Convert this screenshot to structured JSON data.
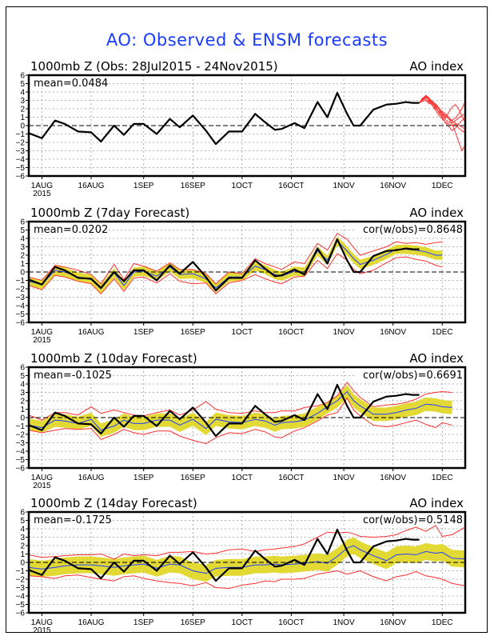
{
  "title": "AO: Observed & ENSM forecasts",
  "chart_data": [
    {
      "type": "line",
      "panel": "observed",
      "title": "1000mb Z (Obs: 28Jul2015 - 24Nov2015)",
      "right_title": "AO index",
      "annotation_left": "mean=0.0484",
      "annotation_right": "",
      "xlabel": "",
      "ylabel": "",
      "ylim": [
        -6,
        6
      ],
      "yticks": [
        6,
        5,
        4,
        3,
        2,
        1,
        0,
        -1,
        -2,
        -3,
        -4,
        -5,
        -6
      ],
      "xticks": [
        {
          "day": 4,
          "label": "1AUG",
          "sub": "2015"
        },
        {
          "day": 19,
          "label": "16AUG"
        },
        {
          "day": 35,
          "label": "1SEP"
        },
        {
          "day": 50,
          "label": "16SEP"
        },
        {
          "day": 65,
          "label": "1OCT"
        },
        {
          "day": 80,
          "label": "16OCT"
        },
        {
          "day": 96,
          "label": "1NOV"
        },
        {
          "day": 111,
          "label": "16NOV"
        },
        {
          "day": 126,
          "label": "1DEC"
        }
      ],
      "xlim_days": [
        0,
        133
      ],
      "grid": true,
      "zero_line": "dashed",
      "observed": {
        "name": "Observed AO",
        "color": "#000000",
        "days": [
          0,
          4,
          8,
          11,
          15,
          19,
          22,
          26,
          29,
          32,
          35,
          39,
          43,
          46,
          50,
          54,
          57,
          61,
          65,
          69,
          72,
          75,
          77,
          81,
          84,
          88,
          91,
          94,
          97,
          99,
          101,
          105,
          109,
          112,
          115,
          117,
          119
        ],
        "values": [
          -0.9,
          -1.5,
          0.6,
          0.2,
          -0.7,
          -0.8,
          -1.9,
          0.0,
          -1.1,
          0.2,
          0.2,
          -1.0,
          0.8,
          -0.2,
          1.2,
          -0.6,
          -2.2,
          -0.7,
          -0.7,
          1.4,
          0.4,
          -0.5,
          -0.4,
          0.3,
          -0.3,
          2.8,
          1.0,
          3.9,
          1.4,
          0.0,
          0.0,
          1.9,
          2.5,
          2.6,
          2.8,
          2.7,
          2.7
        ]
      },
      "ensemble_members": {
        "name": "ENSM forecast members",
        "color": "#ff3333",
        "start_day": 119,
        "end_day": 133,
        "members": [
          [
            2.7,
            3.2,
            3.6,
            2.9,
            2.4,
            1.8,
            1.2,
            0.8,
            0.4,
            0.2,
            0.0,
            0.2,
            -0.3,
            -0.6,
            -0.9
          ],
          [
            2.7,
            3.0,
            3.3,
            3.1,
            2.7,
            2.1,
            1.6,
            1.1,
            0.7,
            0.4,
            0.3,
            0.6,
            0.9,
            1.2,
            1.4
          ],
          [
            2.7,
            3.1,
            3.4,
            3.0,
            2.5,
            2.6,
            2.1,
            1.5,
            1.2,
            0.8,
            0.2,
            -0.8,
            -1.9,
            -3.0,
            -2.3
          ],
          [
            2.7,
            2.9,
            3.0,
            2.6,
            2.8,
            2.3,
            2.0,
            1.3,
            0.9,
            1.6,
            2.2,
            2.5,
            2.0,
            1.1,
            0.4
          ],
          [
            2.7,
            3.3,
            3.5,
            3.2,
            2.9,
            2.5,
            1.9,
            1.7,
            1.4,
            1.0,
            0.6,
            0.9,
            1.4,
            2.0,
            2.9
          ],
          [
            2.7,
            3.0,
            3.6,
            3.3,
            2.7,
            2.2,
            1.5,
            1.0,
            0.3,
            -0.1,
            -0.6,
            -0.3,
            0.2,
            0.6,
            1.0
          ],
          [
            2.7,
            3.2,
            3.1,
            2.8,
            2.4,
            2.0,
            1.7,
            1.4,
            1.1,
            0.8,
            0.5,
            0.3,
            0.1,
            -0.2,
            -0.4
          ]
        ]
      }
    },
    {
      "type": "line",
      "panel": "7day",
      "title": "1000mb Z (7day Forecast)",
      "right_title": "AO index",
      "annotation_left": "mean=0.0202",
      "annotation_right": "cor(w/obs)=0.8648",
      "ylim": [
        -6,
        6
      ],
      "grid": true,
      "observed_ref": "observed",
      "forecast": {
        "days": [
          0,
          4,
          8,
          11,
          15,
          19,
          22,
          26,
          29,
          32,
          35,
          39,
          43,
          46,
          50,
          54,
          57,
          61,
          65,
          69,
          72,
          75,
          77,
          81,
          84,
          88,
          91,
          94,
          97,
          99,
          101,
          105,
          109,
          112,
          115,
          118,
          121,
          124,
          126
        ],
        "mean": [
          -1.1,
          -1.5,
          0.2,
          0.0,
          -0.6,
          -0.9,
          -2.0,
          -0.1,
          -1.6,
          0.0,
          0.1,
          -0.5,
          0.6,
          -0.3,
          -0.2,
          -0.8,
          -1.9,
          -0.6,
          -0.6,
          0.7,
          0.3,
          -0.3,
          -0.5,
          0.1,
          0.0,
          2.5,
          1.4,
          3.7,
          2.5,
          1.6,
          0.9,
          1.4,
          2.1,
          2.7,
          2.7,
          2.6,
          2.4,
          2.0,
          2.0
        ],
        "spread_inner": 0.55,
        "upper": [
          -0.6,
          -1.0,
          0.8,
          0.6,
          0.2,
          -0.3,
          -1.4,
          0.9,
          -0.9,
          1.0,
          0.7,
          0.1,
          1.1,
          0.3,
          0.3,
          -0.2,
          -1.4,
          0.0,
          -0.2,
          1.6,
          1.0,
          0.6,
          0.3,
          1.2,
          1.0,
          3.4,
          2.6,
          4.6,
          3.9,
          2.9,
          2.0,
          2.5,
          3.0,
          3.6,
          3.4,
          3.5,
          3.3,
          3.5,
          3.6
        ],
        "lower": [
          -1.6,
          -2.1,
          -0.4,
          -0.6,
          -1.1,
          -1.4,
          -2.6,
          -0.8,
          -2.3,
          -0.7,
          -0.6,
          -1.3,
          -0.2,
          -1.1,
          -1.4,
          -1.3,
          -2.6,
          -1.3,
          -1.0,
          -0.3,
          -0.8,
          -1.2,
          -1.4,
          -0.6,
          -0.5,
          1.4,
          0.4,
          2.2,
          1.4,
          0.3,
          -0.2,
          0.2,
          1.1,
          1.7,
          1.8,
          1.5,
          1.3,
          0.8,
          0.6
        ]
      }
    },
    {
      "type": "line",
      "panel": "10day",
      "title": "1000mb Z (10day Forecast)",
      "right_title": "AO index",
      "annotation_left": "mean=-0.1025",
      "annotation_right": "cor(w/obs)=0.6691",
      "ylim": [
        -6,
        6
      ],
      "grid": true,
      "observed_ref": "observed",
      "forecast": {
        "days": [
          0,
          4,
          8,
          11,
          15,
          19,
          22,
          26,
          29,
          32,
          35,
          39,
          43,
          46,
          50,
          54,
          57,
          61,
          65,
          69,
          72,
          75,
          77,
          81,
          84,
          88,
          91,
          94,
          97,
          99,
          101,
          105,
          109,
          112,
          115,
          118,
          121,
          124,
          126,
          129
        ],
        "mean": [
          -0.9,
          -1.2,
          -0.3,
          -0.4,
          -0.7,
          -0.2,
          -1.5,
          -1.0,
          -0.3,
          -0.7,
          -0.7,
          -0.3,
          -0.3,
          -0.9,
          -0.2,
          -1.3,
          -0.2,
          -0.5,
          -0.6,
          -0.2,
          -0.4,
          -0.9,
          -0.6,
          -0.5,
          -0.3,
          0.5,
          1.3,
          2.0,
          3.1,
          2.0,
          1.4,
          0.4,
          0.4,
          0.6,
          0.9,
          1.1,
          1.6,
          1.5,
          1.3,
          1.2
        ],
        "spread_inner": 0.8,
        "upper": [
          0.3,
          -0.3,
          0.6,
          0.6,
          0.3,
          1.3,
          0.5,
          0.9,
          0.6,
          0.3,
          0.2,
          0.6,
          0.9,
          0.3,
          0.9,
          1.9,
          1.0,
          0.6,
          0.5,
          0.8,
          0.6,
          0.6,
          0.8,
          0.8,
          1.2,
          1.4,
          1.8,
          2.6,
          4.2,
          3.2,
          2.4,
          1.3,
          1.5,
          1.6,
          1.8,
          2.2,
          2.8,
          3.0,
          3.1,
          3.0
        ],
        "lower": [
          -1.5,
          -1.8,
          -1.5,
          -1.3,
          -1.4,
          -1.3,
          -2.6,
          -2.0,
          -1.4,
          -1.8,
          -2.0,
          -1.6,
          -1.6,
          -2.2,
          -2.7,
          -3.1,
          -2.4,
          -1.8,
          -1.9,
          -1.4,
          -1.7,
          -2.3,
          -2.4,
          -1.6,
          -1.2,
          -0.4,
          0.3,
          0.6,
          2.3,
          0.9,
          0.2,
          -0.9,
          -1.1,
          -0.9,
          -0.6,
          -0.3,
          -0.8,
          -1.2,
          -0.6,
          -0.9
        ]
      }
    },
    {
      "type": "line",
      "panel": "14day",
      "title": "1000mb Z (14day Forecast)",
      "right_title": "AO index",
      "annotation_left": "mean=-0.1725",
      "annotation_right": "cor(w/obs)=0.5148",
      "ylim": [
        -6,
        6
      ],
      "grid": true,
      "observed_ref": "observed",
      "forecast": {
        "days": [
          0,
          4,
          8,
          11,
          15,
          19,
          22,
          26,
          29,
          32,
          35,
          39,
          43,
          46,
          50,
          54,
          57,
          61,
          65,
          69,
          72,
          75,
          77,
          81,
          84,
          88,
          91,
          94,
          97,
          99,
          101,
          105,
          109,
          112,
          115,
          118,
          121,
          124,
          126,
          129,
          133
        ],
        "mean": [
          -0.6,
          -0.8,
          -0.6,
          -0.4,
          -0.3,
          -0.3,
          -0.4,
          -0.6,
          -0.4,
          -0.3,
          -0.2,
          -0.7,
          -0.2,
          -0.3,
          -1.0,
          -1.3,
          -0.7,
          -0.6,
          -0.6,
          -0.3,
          -0.3,
          -0.2,
          -0.3,
          -0.2,
          -0.1,
          0.1,
          -0.1,
          0.7,
          1.7,
          2.0,
          1.5,
          0.8,
          0.2,
          0.9,
          1.0,
          0.9,
          1.3,
          1.1,
          1.2,
          0.5,
          0.4
        ],
        "spread_inner": 1.0,
        "upper": [
          0.9,
          0.6,
          0.7,
          0.8,
          0.9,
          0.9,
          1.0,
          0.4,
          1.0,
          0.8,
          0.9,
          0.8,
          1.2,
          1.2,
          1.3,
          1.0,
          1.1,
          1.5,
          1.6,
          1.3,
          1.5,
          1.6,
          1.7,
          1.9,
          2.2,
          3.0,
          3.6,
          3.5,
          3.6,
          3.4,
          3.1,
          3.0,
          3.1,
          3.3,
          3.8,
          4.2,
          3.7,
          4.4,
          3.1,
          3.3,
          4.2
        ],
        "lower": [
          -1.6,
          -1.7,
          -1.9,
          -1.6,
          -1.5,
          -1.8,
          -2.0,
          -2.2,
          -1.7,
          -1.6,
          -1.9,
          -2.2,
          -2.4,
          -2.5,
          -2.8,
          -2.4,
          -3.0,
          -3.1,
          -2.7,
          -2.5,
          -2.2,
          -2.3,
          -2.0,
          -2.0,
          -1.9,
          -1.4,
          -1.2,
          -1.0,
          -1.4,
          -1.2,
          -1.0,
          -1.7,
          -2.2,
          -1.7,
          -1.5,
          -1.1,
          -1.6,
          -1.8,
          -2.0,
          -2.5,
          -2.8
        ]
      }
    }
  ],
  "colors": {
    "title": "#1a3cff",
    "observed": "#000000",
    "ensemble_mean": "#1f3fff",
    "spread_fill": "#e3d935",
    "spread_bounds": "#ff3030",
    "grid": "#9a9a9a"
  }
}
